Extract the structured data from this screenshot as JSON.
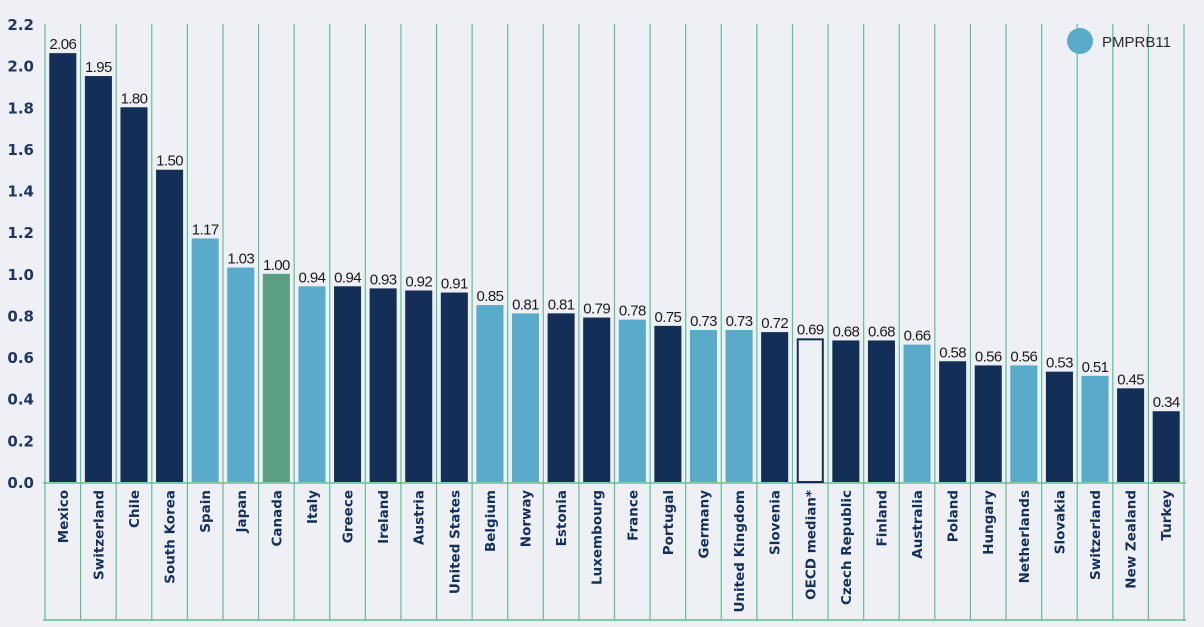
{
  "chart_data": {
    "type": "bar",
    "title": "",
    "xlabel": "",
    "ylabel": "",
    "ylim": [
      0,
      2.2
    ],
    "yticks": [
      "0.0",
      "0.2",
      "0.4",
      "0.6",
      "0.8",
      "1.0",
      "1.2",
      "1.4",
      "1.6",
      "1.8",
      "2.0",
      "2.2"
    ],
    "grid": "vertical category separators",
    "legend": {
      "position": "top-right",
      "entries": [
        {
          "label": "PMPRB11",
          "color": "#5aaac9"
        }
      ]
    },
    "colors": {
      "other": "#132f57",
      "pmprb11": "#5aaac9",
      "canada": "#5a9f82",
      "median_outline": "#132f57",
      "grid": "#5fbf94",
      "background": "#eff0f5"
    },
    "categories": [
      "Mexico",
      "Switzerland",
      "Chile",
      "South Korea",
      "Spain",
      "Japan",
      "Canada",
      "Italy",
      "Greece",
      "Ireland",
      "Austria",
      "United States",
      "Belgium",
      "Norway",
      "Estonia",
      "Luxembourg",
      "France",
      "Portugal",
      "Germany",
      "United Kingdom",
      "Slovenia",
      "OECD median*",
      "Czech Republic",
      "Finland",
      "Australia",
      "Poland",
      "Hungary",
      "Netherlands",
      "Slovakia",
      "Switzerland",
      "New Zealand",
      "Turkey"
    ],
    "values": [
      2.06,
      1.95,
      1.8,
      1.5,
      1.17,
      1.03,
      1.0,
      0.94,
      0.94,
      0.93,
      0.92,
      0.91,
      0.85,
      0.81,
      0.81,
      0.79,
      0.78,
      0.75,
      0.73,
      0.73,
      0.72,
      0.69,
      0.68,
      0.68,
      0.66,
      0.58,
      0.56,
      0.56,
      0.53,
      0.51,
      0.45,
      0.34
    ],
    "value_labels": [
      "2.06",
      "1.95",
      "1.80",
      "1.50",
      "1.17",
      "1.03",
      "1.00",
      "0.94",
      "0.94",
      "0.93",
      "0.92",
      "0.91",
      "0.85",
      "0.81",
      "0.81",
      "0.79",
      "0.78",
      "0.75",
      "0.73",
      "0.73",
      "0.72",
      "0.69",
      "0.68",
      "0.68",
      "0.66",
      "0.58",
      "0.56",
      "0.56",
      "0.53",
      "0.51",
      "0.45",
      "0.34"
    ],
    "groups": [
      "other",
      "other",
      "other",
      "other",
      "pmprb11",
      "pmprb11",
      "canada",
      "pmprb11",
      "other",
      "other",
      "other",
      "other",
      "pmprb11",
      "pmprb11",
      "other",
      "other",
      "pmprb11",
      "other",
      "pmprb11",
      "pmprb11",
      "other",
      "median",
      "other",
      "other",
      "pmprb11",
      "other",
      "other",
      "pmprb11",
      "other",
      "pmprb11",
      "other",
      "other"
    ]
  }
}
